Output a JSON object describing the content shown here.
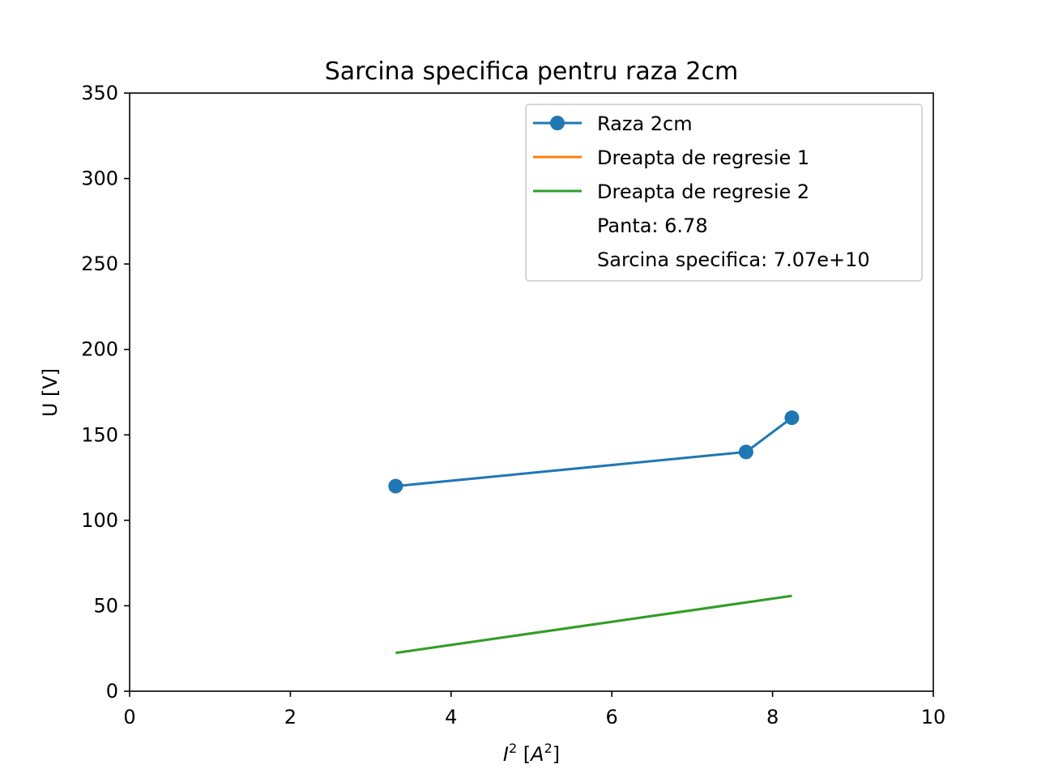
{
  "chart_data": {
    "type": "line",
    "title": "Sarcina specifica pentru raza 2cm",
    "xlabel_parts": {
      "var": "I",
      "exp": "2",
      "unit_open": "[",
      "unit_var": "A",
      "unit_exp": "2",
      "unit_close": "]"
    },
    "ylabel": "U [V]",
    "xlim": [
      0,
      10
    ],
    "ylim": [
      0,
      350
    ],
    "xticks": [
      0,
      2,
      4,
      6,
      8,
      10
    ],
    "xtick_labels": [
      "0",
      "2",
      "4",
      "6",
      "8",
      "10"
    ],
    "yticks": [
      0,
      50,
      100,
      150,
      200,
      250,
      300,
      350
    ],
    "ytick_labels": [
      "0",
      "50",
      "100",
      "150",
      "200",
      "250",
      "300",
      "350"
    ],
    "grid": false,
    "legend_position": "upper right",
    "series": [
      {
        "name": "Raza 2cm",
        "color": "#1f77b4",
        "marker": "circle",
        "x": [
          3.31,
          7.67,
          8.24
        ],
        "y": [
          120,
          140,
          160
        ]
      },
      {
        "name": "Dreapta de regresie 1",
        "color": "#ff7f0e",
        "marker": "none",
        "x": [
          3.31,
          8.24
        ],
        "y": [
          22.4,
          55.8
        ]
      },
      {
        "name": "Dreapta de regresie 2",
        "color": "#2ca02c",
        "marker": "none",
        "x": [
          3.31,
          8.24
        ],
        "y": [
          22.4,
          55.8
        ]
      }
    ],
    "legend_extra": [
      "Panta: 6.78",
      "Sarcina specifica: 7.07e+10"
    ]
  }
}
